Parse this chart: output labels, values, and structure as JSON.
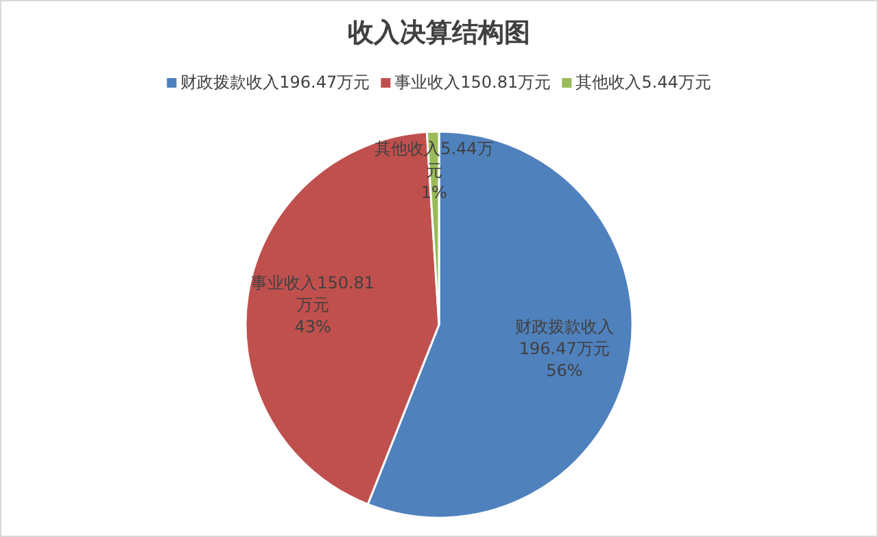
{
  "chart_data": {
    "type": "pie",
    "title": "收入决算结构图",
    "categories": [
      "财政拨款收入196.47万元",
      "事业收入150.81万元",
      "其他收入5.44万元"
    ],
    "values": [
      56,
      43,
      1
    ],
    "value_labels": [
      "56%",
      "43%",
      "1%"
    ],
    "colors": [
      "#4f81bd",
      "#c0504d",
      "#9bbb59"
    ],
    "legend": "top"
  }
}
